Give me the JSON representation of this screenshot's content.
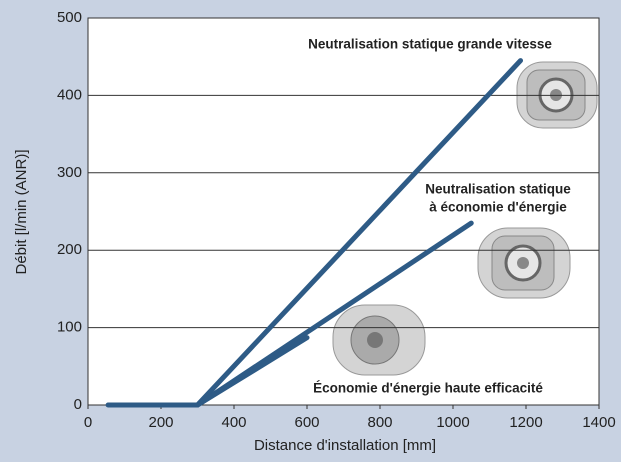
{
  "chart_data": {
    "type": "line",
    "xlabel": "Distance d'installation [mm]",
    "ylabel": "Débit [l/min (ANR)]",
    "series": [
      {
        "color": "#2e5b86",
        "x": [
          55,
          300,
          1185
        ],
        "values": [
          0,
          0,
          445
        ]
      },
      {
        "color": "#2e5b86",
        "x": [
          300,
          1050
        ],
        "values": [
          0,
          235
        ]
      },
      {
        "color": "#2e5b86",
        "x": [
          300,
          600
        ],
        "values": [
          0,
          87
        ]
      }
    ],
    "annotations": [
      {
        "lines": [
          "Neutralisation statique grande vitesse"
        ]
      },
      {
        "lines": [
          "Neutralisation statique",
          "à économie d'énergie"
        ]
      },
      {
        "lines": [
          "Économie d'énergie haute efficacité"
        ]
      }
    ],
    "xlim": [
      0,
      1400
    ],
    "xticks": [
      0,
      200,
      400,
      600,
      800,
      1000,
      1200,
      1400
    ],
    "ylim": [
      0,
      500
    ],
    "yticks": [
      0,
      100,
      200,
      300,
      400,
      500
    ],
    "grid": true
  }
}
